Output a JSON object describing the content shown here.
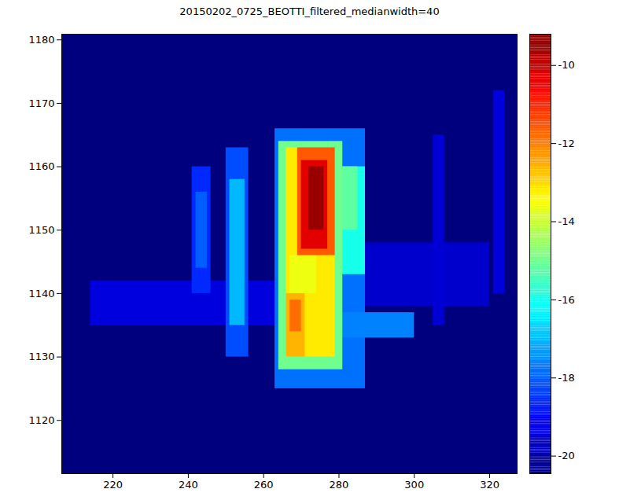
{
  "chart_data": {
    "type": "heatmap",
    "title": "20150202_0725_BEOTTI_filtered_medianwidth=40",
    "xlim": [
      206.4,
      327.3
    ],
    "ylim": [
      1111.6,
      1180.9
    ],
    "xticks": [
      220,
      240,
      260,
      280,
      300,
      320
    ],
    "yticks": [
      1120,
      1130,
      1140,
      1150,
      1160,
      1170,
      1180
    ],
    "color": "jet",
    "cells": [
      {
        "x1": 206.4,
        "x2": 327.3,
        "y1": 1111.6,
        "y2": 1180.9,
        "value": -20.5
      },
      {
        "x1": 214,
        "x2": 265,
        "y1": 1135,
        "y2": 1142,
        "value": -19.4
      },
      {
        "x1": 280,
        "x2": 320,
        "y1": 1138,
        "y2": 1148,
        "value": -19.6
      },
      {
        "x1": 305,
        "x2": 308,
        "y1": 1135,
        "y2": 1165,
        "value": -19.5
      },
      {
        "x1": 321,
        "x2": 324,
        "y1": 1140,
        "y2": 1172,
        "value": -19.4
      },
      {
        "x1": 241,
        "x2": 246,
        "y1": 1140,
        "y2": 1160,
        "value": -18.6
      },
      {
        "x1": 242,
        "x2": 245,
        "y1": 1144,
        "y2": 1156,
        "value": -18.0
      },
      {
        "x1": 250,
        "x2": 256,
        "y1": 1130,
        "y2": 1163,
        "value": -18.2
      },
      {
        "x1": 251,
        "x2": 255,
        "y1": 1135,
        "y2": 1158,
        "value": -17.0
      },
      {
        "x1": 263,
        "x2": 287,
        "y1": 1125,
        "y2": 1166,
        "value": -17.8
      },
      {
        "x1": 280,
        "x2": 300,
        "y1": 1133,
        "y2": 1137,
        "value": -17.6
      },
      {
        "x1": 278,
        "x2": 287,
        "y1": 1143,
        "y2": 1160,
        "value": -16.0
      },
      {
        "x1": 280,
        "x2": 285,
        "y1": 1150,
        "y2": 1160,
        "value": -15.2
      },
      {
        "x1": 264,
        "x2": 281,
        "y1": 1128,
        "y2": 1164,
        "value": -15.0
      },
      {
        "x1": 266,
        "x2": 279,
        "y1": 1130,
        "y2": 1163,
        "value": -13.2
      },
      {
        "x1": 267,
        "x2": 274,
        "y1": 1140,
        "y2": 1146,
        "value": -13.6
      },
      {
        "x1": 266,
        "x2": 271,
        "y1": 1130,
        "y2": 1140,
        "value": -12.6
      },
      {
        "x1": 267,
        "x2": 270,
        "y1": 1134,
        "y2": 1139,
        "value": -11.8
      },
      {
        "x1": 269,
        "x2": 279,
        "y1": 1146,
        "y2": 1163,
        "value": -11.6
      },
      {
        "x1": 270,
        "x2": 277,
        "y1": 1147,
        "y2": 1161,
        "value": -10.3
      },
      {
        "x1": 272,
        "x2": 276,
        "y1": 1150,
        "y2": 1160,
        "value": -9.5
      }
    ],
    "colorbar": {
      "range": [
        -20.45,
        -9.2
      ],
      "ticks": [
        -20,
        -18,
        -16,
        -14,
        -12,
        -10
      ]
    }
  }
}
